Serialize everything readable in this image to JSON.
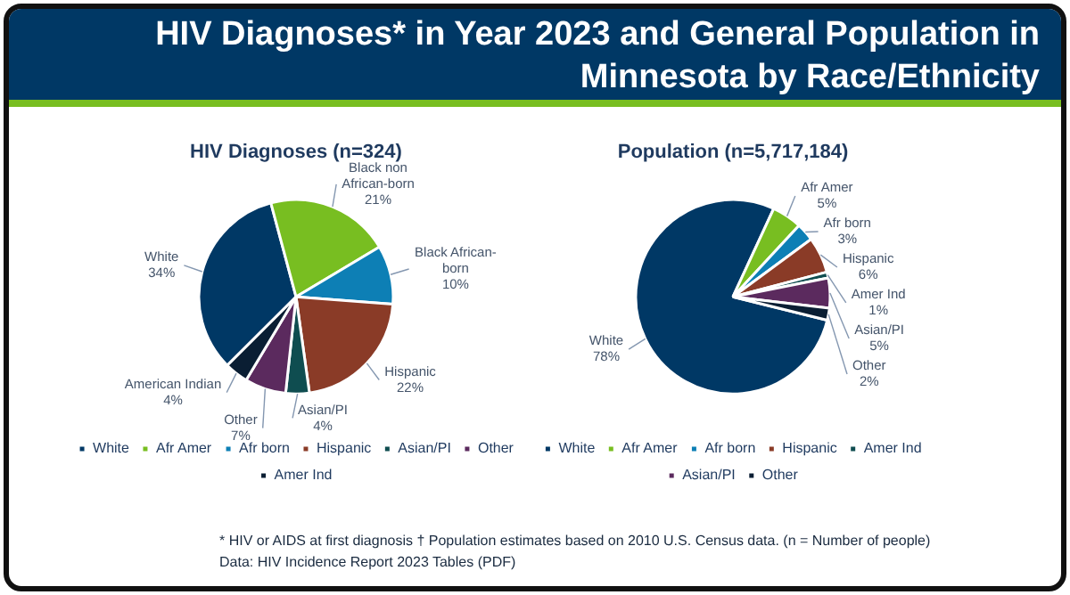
{
  "chart_data": [
    {
      "type": "pie",
      "title": "HIV Diagnoses* in Year 2023 and General Population in Minnesota by Race/Ethnicity",
      "subtitle": "HIV Diagnoses (n=324)",
      "categories": [
        "White",
        "Afr Amer",
        "Afr born",
        "Hispanic",
        "Asian/PI",
        "Other",
        "Amer Ind"
      ],
      "values": [
        34,
        21,
        10,
        22,
        4,
        7,
        4
      ],
      "colors": [
        "#003865",
        "#78be21",
        "#0d7fb5",
        "#8a3b27",
        "#0f4d50",
        "#5b2a5e",
        "#0a1e33"
      ],
      "value_labels": [
        "White\n34%",
        "Black non\nAfrican-born\n21%",
        "Black African-\nborn\n10%",
        "Hispanic\n22%",
        "Asian/PI\n4%",
        "Other\n7%",
        "American Indian\n4%"
      ],
      "legend": "bottom",
      "annotations": [
        "* HIV or AIDS at first diagnosis † Population estimates based on 2010 U.S. Census data. (n = Number of people)",
        "Data: HIV Incidence Report 2023 Tables (PDF)"
      ]
    },
    {
      "type": "pie",
      "subtitle": "Population (n=5,717,184)",
      "categories": [
        "White",
        "Afr Amer",
        "Afr born",
        "Hispanic",
        "Amer Ind",
        "Asian/PI",
        "Other"
      ],
      "values": [
        78,
        5,
        3,
        6,
        1,
        5,
        2
      ],
      "colors": [
        "#003865",
        "#78be21",
        "#0d7fb5",
        "#8a3b27",
        "#0f4d50",
        "#5b2a5e",
        "#0a1e33"
      ],
      "value_labels": [
        "White\n78%",
        "Afr Amer\n5%",
        "Afr born\n3%",
        "Hispanic\n6%",
        "Amer Ind\n1%",
        "Asian/PI\n5%",
        "Other\n2%"
      ],
      "legend": "bottom"
    }
  ]
}
